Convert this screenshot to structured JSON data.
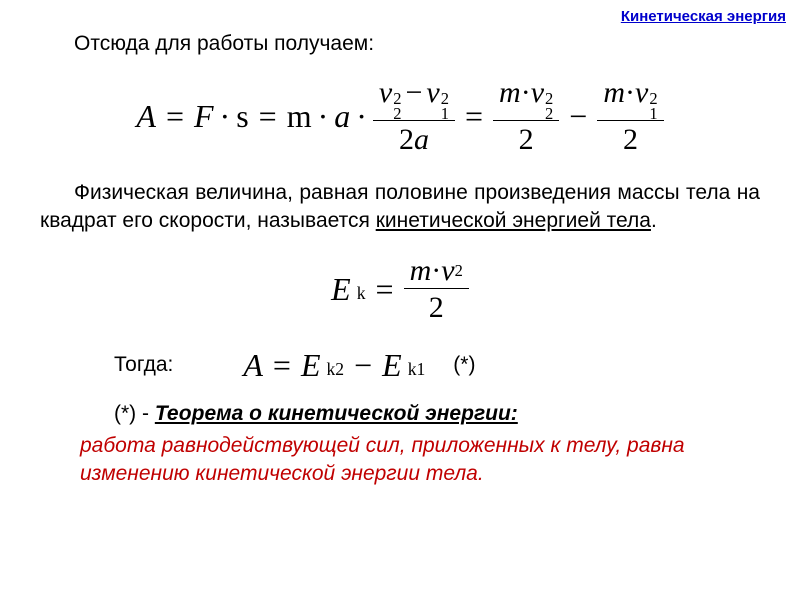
{
  "header": {
    "link_text": "Кинетическая энергия",
    "link_color": "#0000cc"
  },
  "intro": {
    "line1": "Отсюда для работы получаем:"
  },
  "formula1": {
    "lhs_A": "A",
    "eq": "=",
    "F": "F",
    "s": "s",
    "m": "m",
    "a": "a",
    "v": "v",
    "sub1": "1",
    "sub2": "2",
    "sup2": "2",
    "two": "2",
    "minus": "−",
    "dot": "·"
  },
  "definition": {
    "text_pre": "Физическая величина, равная половине произведения массы тела на квадрат его скорости, называется ",
    "text_underline": "кинетической энергией тела",
    "text_post": "."
  },
  "formula2": {
    "E": "E",
    "k": "k",
    "m": "m",
    "v": "v",
    "two": "2",
    "eq": "="
  },
  "then": {
    "label": "Тогда:",
    "A": "A",
    "E": "E",
    "k1": "k1",
    "k2": "k2",
    "eq": "=",
    "minus": "−",
    "star": "(*)"
  },
  "theorem": {
    "star": "(*) - ",
    "title": "Теорема о кинетической энергии:",
    "body": "работа равнодействующей сил, приложенных к телу, равна изменению кинетической энергии тела.",
    "body_color": "#c00000"
  }
}
